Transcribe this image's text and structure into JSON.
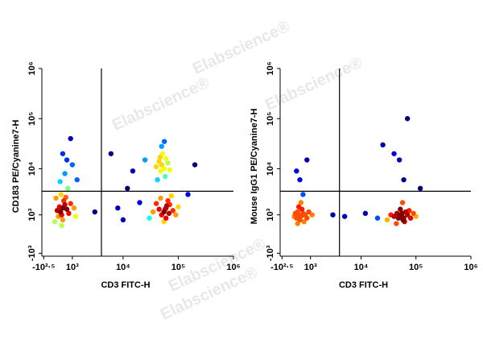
{
  "watermark": "Elabscience®",
  "chart_data": [
    {
      "type": "scatter",
      "xlabel": "CD3 FITC-H",
      "ylabel": "CD183 PE/Cyanine7-H",
      "xscale": "asinh",
      "yscale": "asinh",
      "xlim": [
        -400,
        1000000
      ],
      "ylim": [
        -1200,
        1000000
      ],
      "xticks": [
        {
          "value": -316.23,
          "label": "-10²·⁵"
        },
        {
          "value": 1000,
          "label": "10³"
        },
        {
          "value": 10000,
          "label": "10⁴"
        },
        {
          "value": 100000,
          "label": "10⁵"
        },
        {
          "value": 1000000,
          "label": "10⁶"
        }
      ],
      "yticks": [
        {
          "value": -1000,
          "label": "-10³"
        },
        {
          "value": 1000,
          "label": "10³"
        },
        {
          "value": 10000,
          "label": "10⁴"
        },
        {
          "value": 100000,
          "label": "10⁵"
        },
        {
          "value": 1000000,
          "label": "10⁶"
        }
      ],
      "gate": {
        "x": 4000,
        "y": 3500
      },
      "x": [
        500,
        400,
        600,
        450,
        700,
        350,
        550,
        800,
        300,
        650,
        500,
        900,
        250,
        1100,
        420,
        750,
        380,
        600,
        1000,
        500,
        1300,
        200,
        150,
        1200,
        700,
        900,
        450,
        60000,
        55000,
        70000,
        50000,
        65000,
        45000,
        80000,
        60000,
        40000,
        75000,
        55000,
        90000,
        35000,
        62000,
        58000,
        68000,
        48000,
        30000,
        100000,
        50000,
        55000,
        45000,
        60000,
        48000,
        52000,
        58000,
        40000,
        65000,
        50000,
        42000,
        70000,
        56000,
        47000,
        8000,
        12000,
        6000,
        15000,
        20000,
        3000,
        25000,
        10000,
        150000,
        200000
      ],
      "values": [
        1500,
        1200,
        1800,
        1000,
        1400,
        1600,
        2200,
        1100,
        900,
        2600,
        700,
        1900,
        1300,
        1500,
        3000,
        4000,
        5500,
        8000,
        12000,
        20000,
        6000,
        2500,
        600,
        900,
        15000,
        40000,
        400,
        1500,
        1200,
        1800,
        1000,
        2200,
        1400,
        1300,
        800,
        1900,
        2800,
        600,
        1000,
        1200,
        1700,
        1400,
        1100,
        2500,
        800,
        1600,
        12000,
        10000,
        14000,
        16000,
        9000,
        20000,
        7000,
        11000,
        13000,
        28000,
        6000,
        9500,
        35000,
        17000,
        1500,
        4000,
        20000,
        9000,
        2000,
        1200,
        15000,
        700,
        3000,
        12000
      ]
    },
    {
      "type": "scatter",
      "xlabel": "CD3 FITC-H",
      "ylabel": "Mouse IgG1 PE/Cyanine7-H",
      "xscale": "asinh",
      "yscale": "asinh",
      "xlim": [
        -400,
        1000000
      ],
      "ylim": [
        -1200,
        1000000
      ],
      "xticks": [
        {
          "value": -316.23,
          "label": "-10²·⁵"
        },
        {
          "value": 1000,
          "label": "10³"
        },
        {
          "value": 10000,
          "label": "10⁴"
        },
        {
          "value": 100000,
          "label": "10⁵"
        },
        {
          "value": 1000000,
          "label": "10⁶"
        }
      ],
      "yticks": [
        {
          "value": -1000,
          "label": "-10³"
        },
        {
          "value": 1000,
          "label": "10³"
        },
        {
          "value": 10000,
          "label": "10⁴"
        },
        {
          "value": 100000,
          "label": "10⁵"
        },
        {
          "value": 1000000,
          "label": "10⁶"
        }
      ],
      "gate": {
        "x": 4000,
        "y": 3500
      },
      "x": [
        400,
        500,
        350,
        600,
        450,
        300,
        700,
        550,
        250,
        800,
        400,
        650,
        900,
        200,
        500,
        350,
        1100,
        600,
        450,
        800,
        300,
        55000,
        50000,
        60000,
        45000,
        65000,
        58000,
        40000,
        70000,
        52000,
        62000,
        48000,
        75000,
        35000,
        80000,
        56000,
        53000,
        30000,
        90000,
        57000,
        44000,
        100000,
        60000,
        40000,
        70000,
        5000,
        12000,
        20000,
        3000,
        50000,
        120000,
        25000
      ],
      "values": [
        1000,
        900,
        1200,
        1100,
        700,
        800,
        1000,
        1400,
        1100,
        800,
        1600,
        600,
        1200,
        900,
        2000,
        500,
        1000,
        3000,
        6000,
        15000,
        9000,
        900,
        1000,
        800,
        1100,
        1200,
        700,
        900,
        1000,
        1400,
        600,
        800,
        1300,
        1000,
        800,
        1100,
        950,
        700,
        1100,
        2000,
        500,
        900,
        6000,
        20000,
        100000,
        900,
        1100,
        800,
        1000,
        15000,
        4000,
        30000
      ]
    }
  ]
}
